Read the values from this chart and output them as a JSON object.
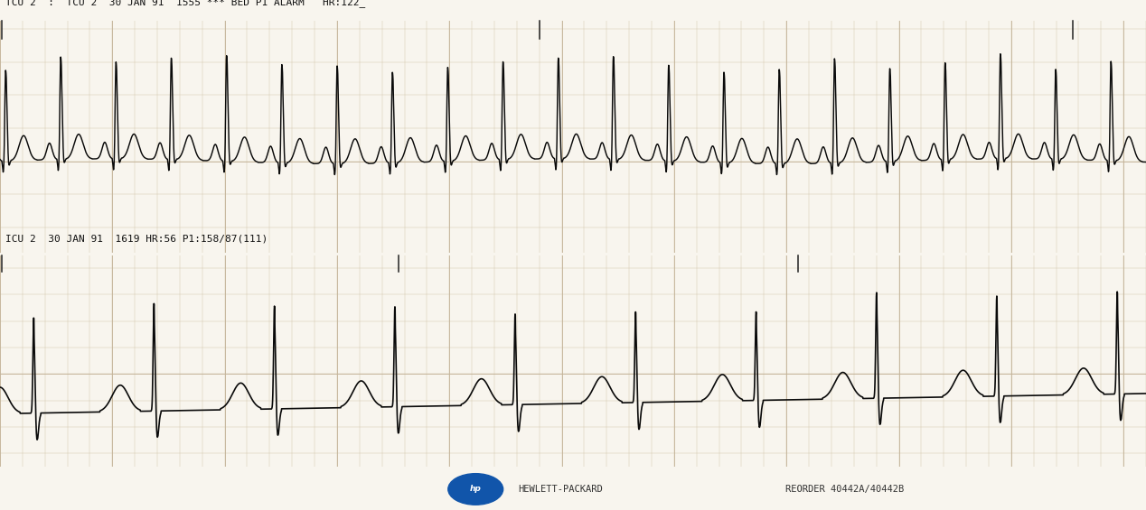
{
  "title1": "TCU 2  :  TCU 2  30 JAN 91  1555 *** BED P1 ALARM   HR:122_",
  "title2": "ICU 2  30 JAN 91  1619 HR:56 P1:158/87(111)",
  "bg_color": "#f8f5ee",
  "grid_minor_color": "#d4c9b0",
  "grid_major_color": "#c4b49a",
  "ecg_color": "#0a0a0a",
  "footer_text": "HEWLETT-PACKARD",
  "footer_text2": "REORDER 40442A/40442B",
  "paper_color": "#f8f5ee",
  "strip_border_color": "#888888"
}
